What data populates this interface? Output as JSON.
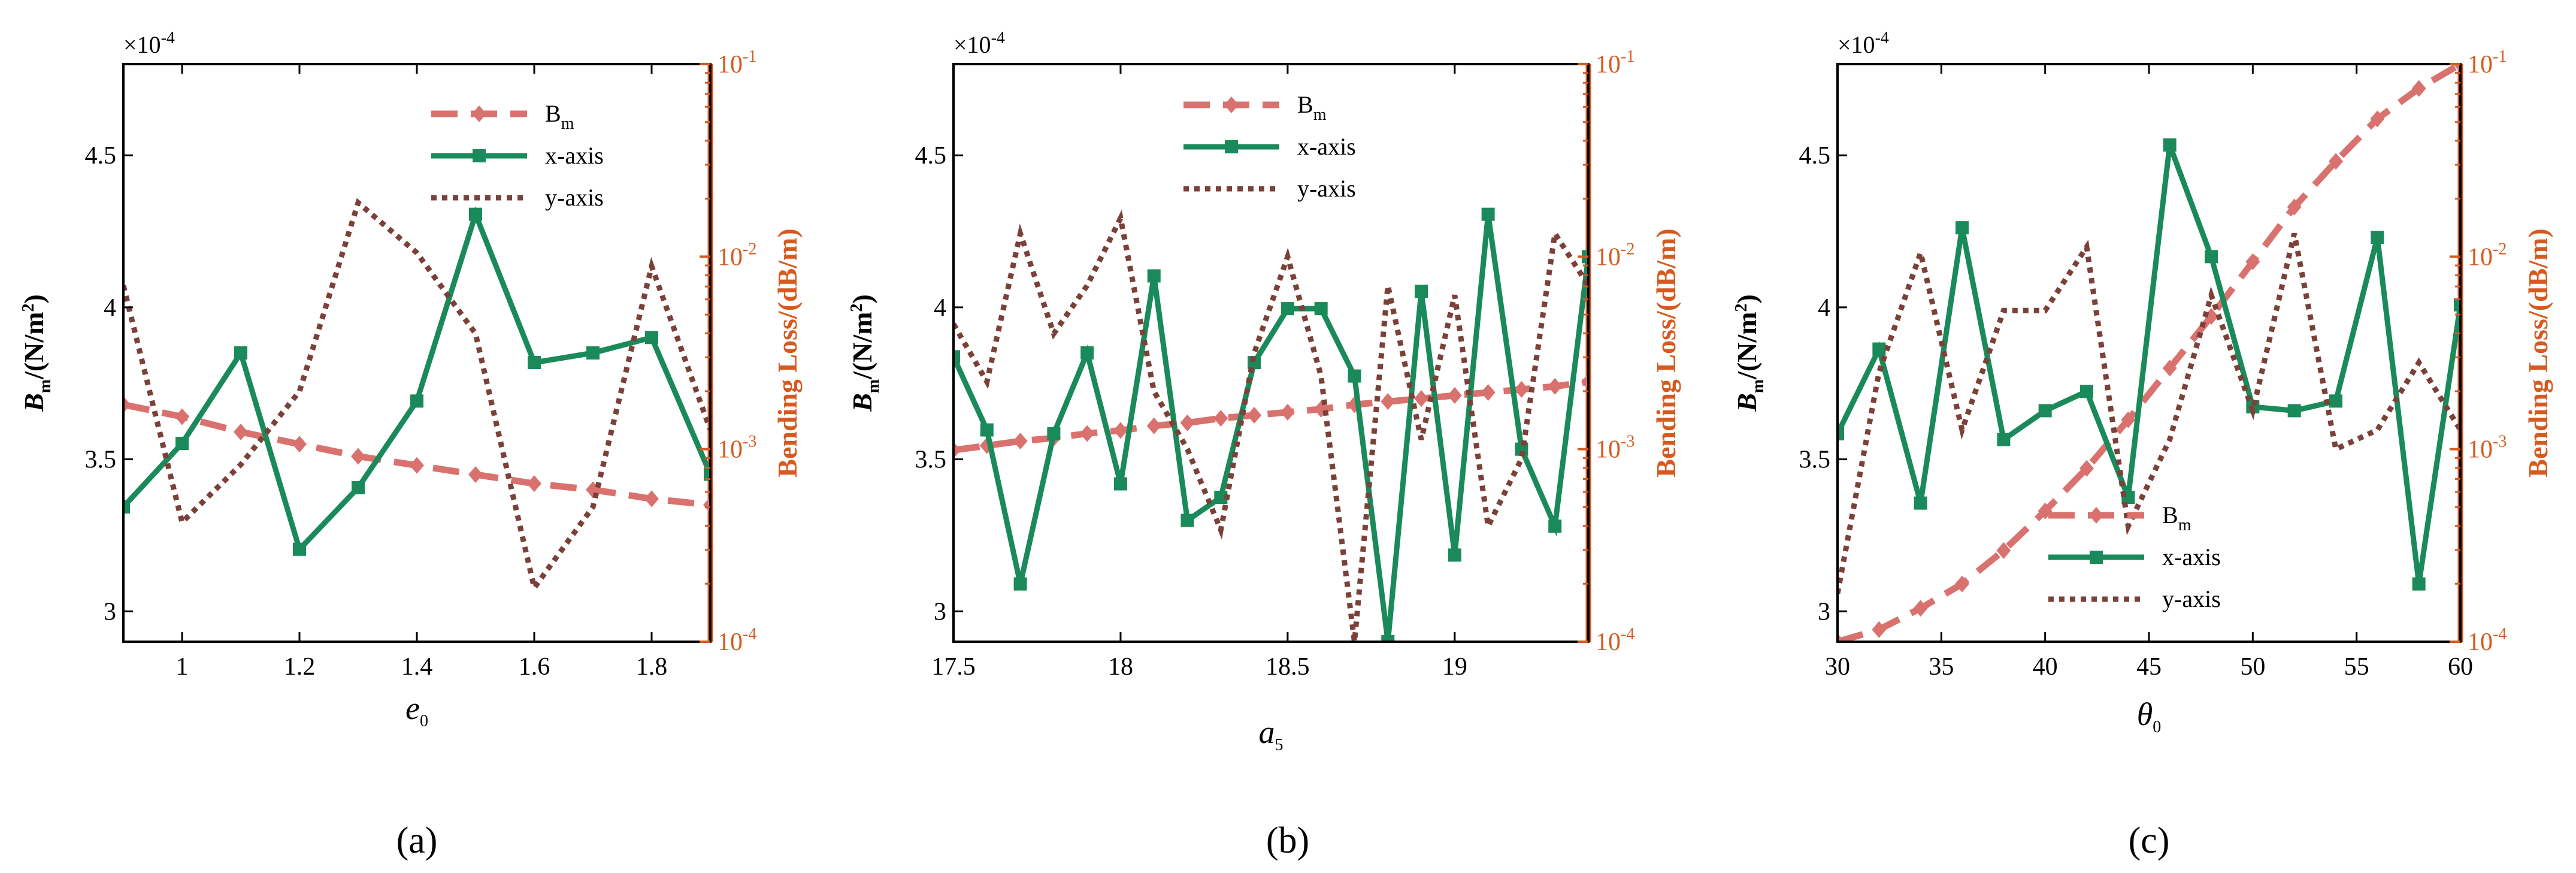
{
  "colors": {
    "bm": "#d9726e",
    "x_axis": "#1a8a5b",
    "y_axis": "#7b4138",
    "right_axis": "#d65a1f",
    "frame": "#000000"
  },
  "chart_data": [
    {
      "type": "line",
      "panel_caption": "(a)",
      "xlabel": "e",
      "xlabel_sub": "0",
      "ylabel": "B",
      "ylabel_sub": "m",
      "ylabel_unit": "/(N/m",
      "ylabel_unit_sup": "2",
      "ylabel_close": ")",
      "ylabel_right": "Bending Loss/(dB/m)",
      "multiplier_base": "×10",
      "multiplier_exp": "-4",
      "xlim": [
        0.9,
        1.9
      ],
      "ylim": [
        2.9,
        4.8
      ],
      "y2lim_log10": [
        -4,
        -1
      ],
      "xticks": [
        1,
        1.2,
        1.4,
        1.6,
        1.8
      ],
      "xtick_labels": [
        "1",
        "1.2",
        "1.4",
        "1.6",
        "1.8"
      ],
      "yticks": [
        3,
        3.5,
        4,
        4.5
      ],
      "ytick_labels": [
        "3",
        "3.5",
        "4",
        "4.5"
      ],
      "y2ticks_exp": [
        -4,
        -3,
        -2,
        -1
      ],
      "y2tick_base": "10",
      "y2tick_exps": [
        "-4",
        "-3",
        "-2",
        "-1"
      ],
      "legend_position": "top-right",
      "series": [
        {
          "name": "B",
          "name_sub": "m",
          "key": "bm",
          "axis": "left",
          "style": "dashed",
          "marker": "diamond",
          "x": [
            0.9,
            1.0,
            1.1,
            1.2,
            1.3,
            1.4,
            1.5,
            1.6,
            1.7,
            1.8,
            1.9
          ],
          "y": [
            3.68,
            3.64,
            3.59,
            3.55,
            3.51,
            3.48,
            3.45,
            3.42,
            3.4,
            3.37,
            3.35
          ]
        },
        {
          "name": "x-axis",
          "key": "x_axis",
          "axis": "right",
          "style": "solid",
          "marker": "square",
          "x": [
            0.9,
            1.0,
            1.1,
            1.2,
            1.3,
            1.4,
            1.5,
            1.6,
            1.7,
            1.8,
            1.9
          ],
          "y_log10": [
            -3.3,
            -2.97,
            -2.5,
            -3.52,
            -3.2,
            -2.75,
            -1.78,
            -2.55,
            -2.5,
            -2.42,
            -3.13
          ]
        },
        {
          "name": "y-axis",
          "key": "y_axis",
          "axis": "right",
          "style": "dotted",
          "marker": "none",
          "x": [
            0.9,
            1.0,
            1.1,
            1.2,
            1.3,
            1.4,
            1.5,
            1.6,
            1.7,
            1.8,
            1.9
          ],
          "y_log10": [
            -2.15,
            -3.38,
            -3.08,
            -2.7,
            -1.72,
            -1.98,
            -2.4,
            -3.72,
            -3.3,
            -2.05,
            -2.9
          ]
        }
      ]
    },
    {
      "type": "line",
      "panel_caption": "(b)",
      "xlabel": "a",
      "xlabel_sub": "5",
      "ylabel": "B",
      "ylabel_sub": "m",
      "ylabel_unit": "/(N/m",
      "ylabel_unit_sup": "2",
      "ylabel_close": ")",
      "ylabel_right": "Bending Loss/(dB/m)",
      "multiplier_base": "×10",
      "multiplier_exp": "-4",
      "xlim": [
        17.5,
        19.4
      ],
      "ylim": [
        2.9,
        4.8
      ],
      "y2lim_log10": [
        -4,
        -1
      ],
      "xticks": [
        17.5,
        18,
        18.5,
        19
      ],
      "xtick_labels": [
        "17.5",
        "18",
        "18.5",
        "19"
      ],
      "yticks": [
        3,
        3.5,
        4,
        4.5
      ],
      "ytick_labels": [
        "3",
        "3.5",
        "4",
        "4.5"
      ],
      "y2ticks_exp": [
        -4,
        -3,
        -2,
        -1
      ],
      "y2tick_base": "10",
      "y2tick_exps": [
        "-4",
        "-3",
        "-2",
        "-1"
      ],
      "legend_position": "top-right",
      "series": [
        {
          "name": "B",
          "name_sub": "m",
          "key": "bm",
          "axis": "left",
          "style": "dashed",
          "marker": "diamond",
          "x": [
            17.5,
            17.6,
            17.7,
            17.8,
            17.9,
            18.0,
            18.1,
            18.2,
            18.3,
            18.4,
            18.5,
            18.6,
            18.7,
            18.8,
            18.9,
            19.0,
            19.1,
            19.2,
            19.3,
            19.4
          ],
          "y": [
            3.53,
            3.545,
            3.56,
            3.57,
            3.585,
            3.595,
            3.61,
            3.62,
            3.635,
            3.645,
            3.655,
            3.665,
            3.68,
            3.69,
            3.7,
            3.71,
            3.72,
            3.73,
            3.74,
            3.755
          ]
        },
        {
          "name": "x-axis",
          "key": "x_axis",
          "axis": "right",
          "style": "solid",
          "marker": "square",
          "x": [
            17.5,
            17.6,
            17.7,
            17.8,
            17.9,
            18.0,
            18.1,
            18.2,
            18.3,
            18.4,
            18.5,
            18.6,
            18.7,
            18.8,
            18.9,
            19.0,
            19.1,
            19.2,
            19.3,
            19.4
          ],
          "y_log10": [
            -2.52,
            -2.9,
            -3.7,
            -2.92,
            -2.5,
            -3.18,
            -2.1,
            -3.37,
            -3.25,
            -2.55,
            -2.27,
            -2.27,
            -2.62,
            -4.0,
            -2.18,
            -3.55,
            -1.78,
            -3.0,
            -3.4,
            -2.0
          ]
        },
        {
          "name": "y-axis",
          "key": "y_axis",
          "axis": "right",
          "style": "dotted",
          "marker": "none",
          "x": [
            17.5,
            17.6,
            17.7,
            17.8,
            17.9,
            18.0,
            18.1,
            18.2,
            18.3,
            18.4,
            18.5,
            18.6,
            18.7,
            18.8,
            18.9,
            19.0,
            19.1,
            19.2,
            19.3,
            19.4
          ],
          "y_log10": [
            -2.35,
            -2.65,
            -1.88,
            -2.4,
            -2.15,
            -1.8,
            -2.7,
            -3.0,
            -3.42,
            -2.5,
            -2.0,
            -2.62,
            -4.0,
            -2.15,
            -2.95,
            -2.2,
            -3.4,
            -3.05,
            -1.88,
            -2.15
          ]
        }
      ]
    },
    {
      "type": "line",
      "panel_caption": "(c)",
      "xlabel": "θ",
      "xlabel_sub": "0",
      "ylabel": "B",
      "ylabel_sub": "m",
      "ylabel_unit": "/(N/m",
      "ylabel_unit_sup": "2",
      "ylabel_close": ")",
      "ylabel_right": "Bending Loss/(dB/m)",
      "multiplier_base": "×10",
      "multiplier_exp": "-4",
      "xlim": [
        30,
        60
      ],
      "ylim": [
        2.9,
        4.8
      ],
      "y2lim_log10": [
        -4,
        -1
      ],
      "xticks": [
        30,
        35,
        40,
        45,
        50,
        55,
        60
      ],
      "xtick_labels": [
        "30",
        "35",
        "40",
        "45",
        "50",
        "55",
        "60"
      ],
      "yticks": [
        3,
        3.5,
        4,
        4.5
      ],
      "ytick_labels": [
        "3",
        "3.5",
        "4",
        "4.5"
      ],
      "y2ticks_exp": [
        -4,
        -3,
        -2,
        -1
      ],
      "y2tick_base": "10",
      "y2tick_exps": [
        "-4",
        "-3",
        "-2",
        "-1"
      ],
      "legend_position": "bottom-right",
      "series": [
        {
          "name": "B",
          "name_sub": "m",
          "key": "bm",
          "axis": "left",
          "style": "dashed",
          "marker": "diamond",
          "x": [
            30,
            32,
            34,
            36,
            38,
            40,
            42,
            44,
            46,
            48,
            50,
            52,
            54,
            56,
            58,
            60
          ],
          "y": [
            2.9,
            2.94,
            3.01,
            3.09,
            3.2,
            3.33,
            3.47,
            3.63,
            3.8,
            3.97,
            4.15,
            4.33,
            4.48,
            4.62,
            4.72,
            4.8
          ]
        },
        {
          "name": "x-axis",
          "key": "x_axis",
          "axis": "right",
          "style": "solid",
          "marker": "square",
          "x": [
            30,
            32,
            34,
            36,
            38,
            40,
            42,
            44,
            46,
            48,
            50,
            52,
            54,
            56,
            58,
            60
          ],
          "y_log10": [
            -2.92,
            -2.48,
            -3.28,
            -1.85,
            -2.95,
            -2.8,
            -2.7,
            -3.25,
            -1.42,
            -2.0,
            -2.78,
            -2.8,
            -2.75,
            -1.9,
            -3.7,
            -2.25
          ]
        },
        {
          "name": "y-axis",
          "key": "y_axis",
          "axis": "right",
          "style": "dotted",
          "marker": "none",
          "x": [
            30,
            32,
            34,
            36,
            38,
            40,
            42,
            44,
            46,
            48,
            50,
            52,
            54,
            56,
            58,
            60
          ],
          "y_log10": [
            -3.75,
            -2.6,
            -1.98,
            -2.9,
            -2.28,
            -2.28,
            -1.95,
            -3.4,
            -2.95,
            -2.2,
            -2.8,
            -1.88,
            -3.0,
            -2.9,
            -2.55,
            -2.9
          ]
        }
      ]
    }
  ]
}
